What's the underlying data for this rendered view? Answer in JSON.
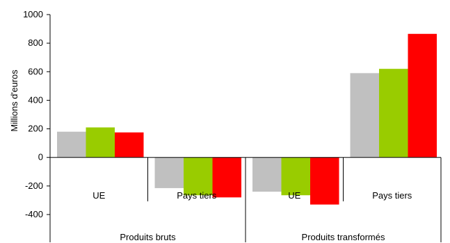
{
  "chart_data": {
    "type": "bar",
    "title": "",
    "xlabel": "",
    "ylabel": "Millions d'euros",
    "ylim": [
      -400,
      1000
    ],
    "yticks": [
      1000,
      800,
      600,
      400,
      200,
      0,
      -200,
      -400
    ],
    "grid": false,
    "legend": "none",
    "groups": [
      {
        "label": "Produits bruts",
        "categories": [
          "UE",
          "Pays tiers"
        ]
      },
      {
        "label": "Produits transformés",
        "categories": [
          "UE",
          "Pays tiers"
        ]
      }
    ],
    "categories": [
      "UE",
      "Pays tiers",
      "UE",
      "Pays tiers"
    ],
    "series": [
      {
        "color": "#c0c0c0",
        "values": [
          180,
          -215,
          -240,
          590
        ]
      },
      {
        "color": "#99cc00",
        "values": [
          210,
          -265,
          -265,
          620
        ]
      },
      {
        "color": "#ff0000",
        "values": [
          175,
          -280,
          -330,
          865
        ]
      }
    ]
  }
}
